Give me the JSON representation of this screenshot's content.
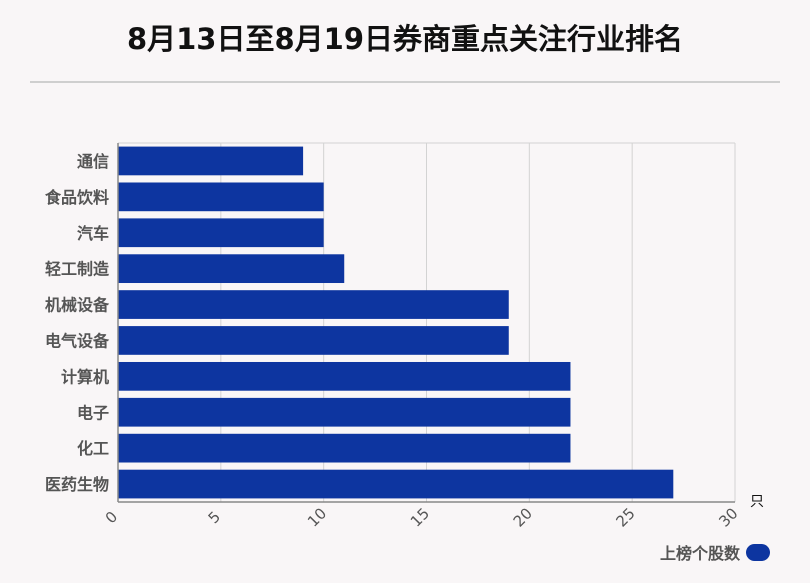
{
  "chart_data": {
    "type": "bar",
    "orientation": "horizontal",
    "title": "8月13日至8月19日券商重点关注行业排名",
    "categories": [
      "通信",
      "食品饮料",
      "汽车",
      "轻工制造",
      "机械设备",
      "电气设备",
      "计算机",
      "电子",
      "化工",
      "医药生物"
    ],
    "series": [
      {
        "name": "上榜个股数",
        "values": [
          9,
          10,
          10,
          11,
          19,
          19,
          22,
          22,
          22,
          27
        ],
        "color": "#0d35a0"
      }
    ],
    "xlim": [
      0,
      30
    ],
    "xticks": [
      0,
      5,
      10,
      15,
      20,
      25,
      30
    ],
    "x_unit": "只",
    "grid": true,
    "legend_position": "bottom-right"
  }
}
